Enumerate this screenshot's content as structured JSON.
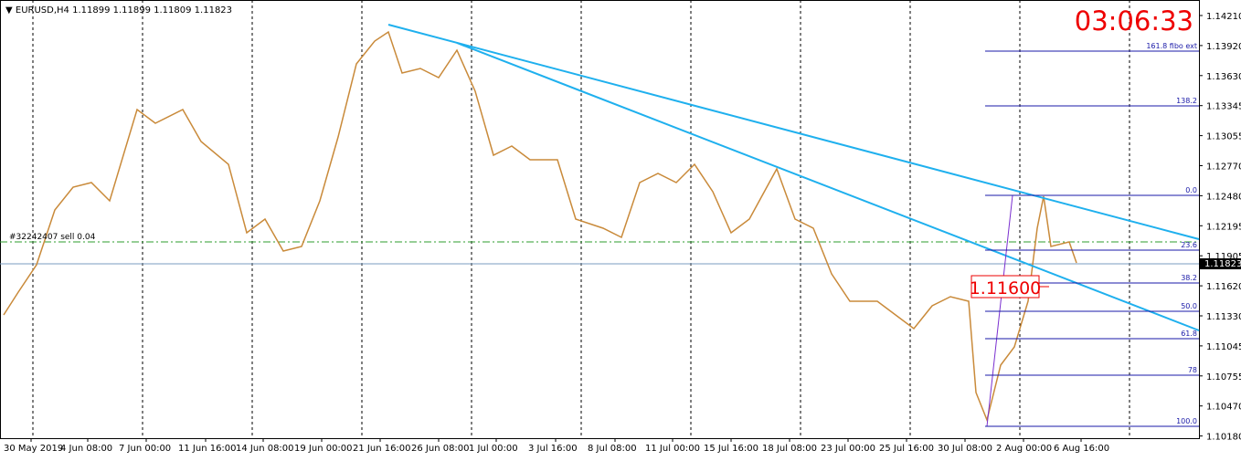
{
  "header": {
    "symbol": "EURUSD,H4",
    "ohlc": "1.11899 1.11899 1.11809 1.11823"
  },
  "clock": "03:06:33",
  "order_label": "#32242407 sell 0.04",
  "price_box": "1.11600",
  "current_price": "1.11823",
  "price_axis": [
    "1.14210",
    "1.13920",
    "1.13630",
    "1.13345",
    "1.13055",
    "1.12770",
    "1.12480",
    "1.12195",
    "1.11905",
    "1.11620",
    "1.11330",
    "1.11045",
    "1.10755",
    "1.10470",
    "1.10180"
  ],
  "time_axis": [
    "30 May 2019",
    "4 Jun 08:00",
    "7 Jun 00:00",
    "11 Jun 16:00",
    "14 Jun 08:00",
    "19 Jun 00:00",
    "21 Jun 16:00",
    "26 Jun 08:00",
    "1 Jul 00:00",
    "3 Jul 16:00",
    "8 Jul 08:00",
    "11 Jul 00:00",
    "15 Jul 16:00",
    "18 Jul 08:00",
    "23 Jul 00:00",
    "25 Jul 16:00",
    "30 Jul 08:00",
    "2 Aug 00:00",
    "6 Aug 16:00"
  ],
  "fibo_levels": [
    "161.8 fibo ext",
    "138.2",
    "0.0",
    "23.6",
    "38.2",
    "50.0",
    "61.8",
    "78",
    "100.0"
  ]
}
